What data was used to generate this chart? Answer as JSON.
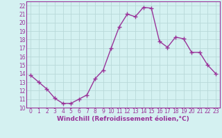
{
  "x": [
    0,
    1,
    2,
    3,
    4,
    5,
    6,
    7,
    8,
    9,
    10,
    11,
    12,
    13,
    14,
    15,
    16,
    17,
    18,
    19,
    20,
    21,
    22,
    23
  ],
  "y": [
    13.8,
    13.0,
    12.2,
    11.1,
    10.5,
    10.5,
    11.0,
    11.5,
    13.4,
    14.4,
    17.0,
    19.5,
    21.0,
    20.7,
    21.8,
    21.7,
    17.8,
    17.1,
    18.3,
    18.1,
    16.5,
    16.5,
    15.0,
    14.0
  ],
  "line_color": "#993399",
  "marker": "+",
  "marker_size": 4,
  "linewidth": 1.0,
  "xlabel": "Windchill (Refroidissement éolien,°C)",
  "ylabel_ticks": [
    10,
    11,
    12,
    13,
    14,
    15,
    16,
    17,
    18,
    19,
    20,
    21,
    22
  ],
  "xlim": [
    -0.5,
    23.5
  ],
  "ylim": [
    10,
    22.5
  ],
  "background_color": "#d4f1f1",
  "grid_color": "#b8d8d8",
  "tick_fontsize": 5.5,
  "xlabel_fontsize": 6.5,
  "xticks": [
    0,
    1,
    2,
    3,
    4,
    5,
    6,
    7,
    8,
    9,
    10,
    11,
    12,
    13,
    14,
    15,
    16,
    17,
    18,
    19,
    20,
    21,
    22,
    23
  ]
}
